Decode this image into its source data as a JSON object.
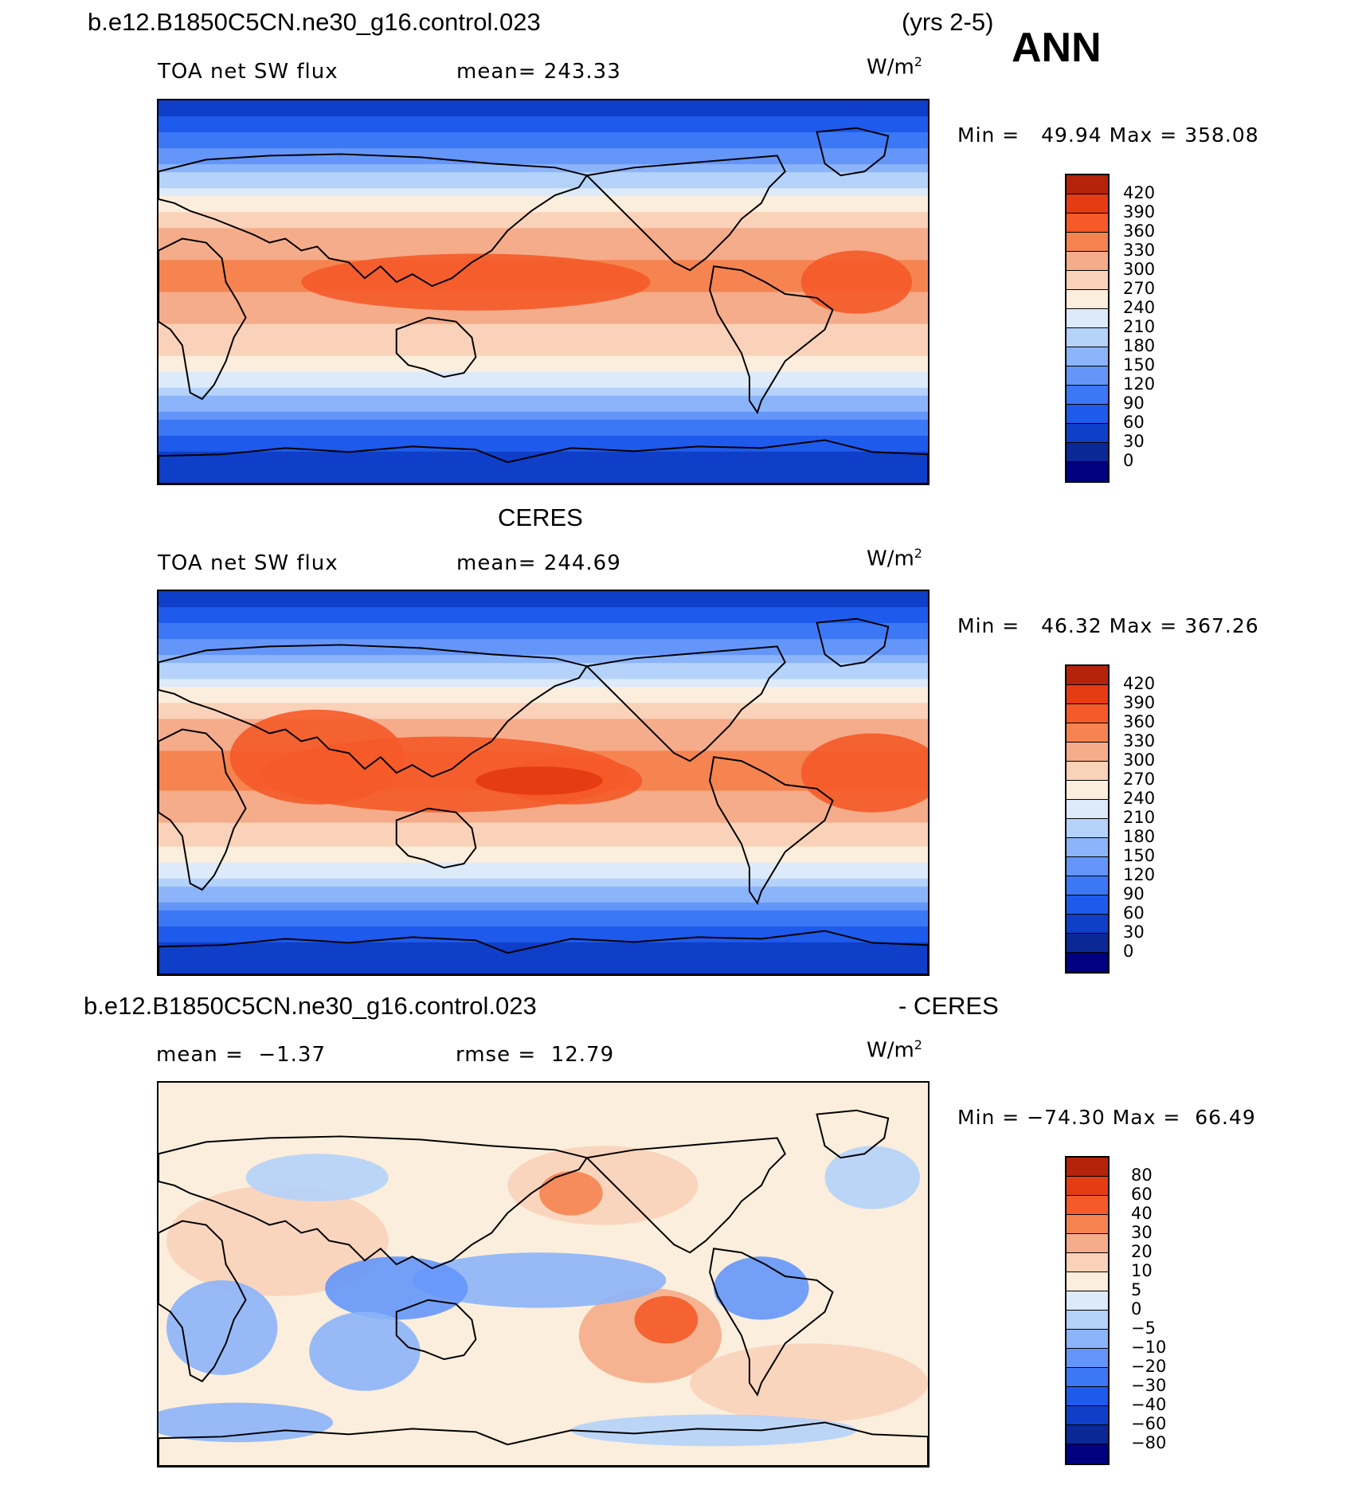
{
  "header": {
    "case_name": "b.e12.B1850C5CN.ne30_g16.control.023",
    "years": "(yrs 2-5)",
    "season": "ANN"
  },
  "colors": {
    "seq": [
      "#000080",
      "#0a2896",
      "#0f3ec8",
      "#1e5aeb",
      "#3c78f5",
      "#6496fa",
      "#8cb4fa",
      "#b4d2fa",
      "#dceafa",
      "#fbeedc",
      "#fad2b9",
      "#f5ac8a",
      "#f58450",
      "#f55a28",
      "#e63c14",
      "#b4230a",
      "#7d0a0a"
    ],
    "seq_ramp_map": [
      "#0a3dd6",
      "#1e5aeb",
      "#3c78f5",
      "#6496fa",
      "#8cb4fa",
      "#b4d2fa",
      "#dceafa",
      "#fbeedc",
      "#fad2b9",
      "#f5ac8a",
      "#f58450"
    ],
    "diff": [
      "#000080",
      "#0a2896",
      "#0f3ec8",
      "#1e5aeb",
      "#3c78f5",
      "#6496fa",
      "#8cb4fa",
      "#b4d2fa",
      "#dceafa",
      "#fbeedc",
      "#fad2b9",
      "#f5ac8a",
      "#f58450",
      "#f55a28",
      "#e63c14",
      "#b4230a",
      "#7d0a0a"
    ]
  },
  "chart_data": [
    {
      "type": "heatmap",
      "panel": "model",
      "title": "b.e12.B1850C5CN.ne30_g16.control.023",
      "variable": "TOA net SW flux",
      "mean_label": "mean= 243.33",
      "units": "W/m",
      "units_sup": "2",
      "min_label": "Min =",
      "min_value": "49.94",
      "max_label": "Max =",
      "max_value": "358.08",
      "colorbar_ticks": [
        "420",
        "390",
        "360",
        "330",
        "300",
        "270",
        "240",
        "210",
        "180",
        "150",
        "120",
        "90",
        "60",
        "30",
        "0"
      ],
      "zonal_profile": {
        "lat": [
          90,
          75,
          60,
          45,
          30,
          15,
          0,
          -15,
          -30,
          -45,
          -60,
          -75,
          -90
        ],
        "value": [
          30,
          90,
          150,
          240,
          300,
          330,
          330,
          300,
          270,
          210,
          120,
          60,
          30
        ]
      }
    },
    {
      "type": "heatmap",
      "panel": "obs",
      "title": "CERES",
      "variable": "TOA net SW flux",
      "mean_label": "mean= 244.69",
      "units": "W/m",
      "units_sup": "2",
      "min_label": "Min =",
      "min_value": "46.32",
      "max_label": "Max =",
      "max_value": "367.26",
      "colorbar_ticks": [
        "420",
        "390",
        "360",
        "330",
        "300",
        "270",
        "240",
        "210",
        "180",
        "150",
        "120",
        "90",
        "60",
        "30",
        "0"
      ],
      "zonal_profile": {
        "lat": [
          90,
          75,
          60,
          45,
          30,
          15,
          0,
          -15,
          -30,
          -45,
          -60,
          -75,
          -90
        ],
        "value": [
          30,
          90,
          150,
          240,
          300,
          330,
          340,
          310,
          270,
          210,
          120,
          60,
          30
        ]
      }
    },
    {
      "type": "heatmap",
      "panel": "difference",
      "title_left": "b.e12.B1850C5CN.ne30_g16.control.023",
      "title_right": "- CERES",
      "mean_label": "mean =",
      "mean_value": "−1.37",
      "rmse_label": "rmse =",
      "rmse_value": "12.79",
      "units": "W/m",
      "units_sup": "2",
      "min_label": "Min =",
      "min_value": "−74.30",
      "max_label": "Max =",
      "max_value": "66.49",
      "colorbar_ticks": [
        "80",
        "60",
        "40",
        "30",
        "20",
        "10",
        "5",
        "0",
        "−5",
        "−10",
        "−20",
        "−30",
        "−40",
        "−60",
        "−80"
      ]
    }
  ]
}
